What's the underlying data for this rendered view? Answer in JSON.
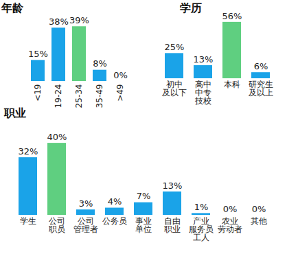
{
  "chart_data": [
    {
      "type": "bar",
      "title": "年龄",
      "categories": [
        "<19",
        "19-24",
        "25-34",
        "35-49",
        ">49"
      ],
      "values": [
        15,
        38,
        39,
        8,
        0
      ],
      "value_labels": [
        "15%",
        "38%",
        "39%",
        "8%",
        "0%"
      ],
      "colors": [
        "#1aa3e8",
        "#1aa3e8",
        "#5fcf80",
        "#1aa3e8",
        "#1aa3e8"
      ],
      "ylim": [
        0,
        45
      ],
      "data_labels": true,
      "tick_labels": "x"
    },
    {
      "type": "bar",
      "title": "学历",
      "categories": [
        "初中\n及以下",
        "高中\n中专\n技校",
        "本科",
        "研究生\n及以上"
      ],
      "values": [
        25,
        13,
        56,
        6
      ],
      "value_labels": [
        "25%",
        "13%",
        "56%",
        "6%"
      ],
      "colors": [
        "#1aa3e8",
        "#1aa3e8",
        "#5fcf80",
        "#1aa3e8"
      ],
      "ylim": [
        0,
        60
      ],
      "data_labels": true,
      "tick_labels": "x"
    },
    {
      "type": "bar",
      "title": "职业",
      "categories": [
        "学生",
        "公司\n职员",
        "公司\n管理者",
        "公务员",
        "事业\n单位",
        "自由\n职业",
        "产业\n服务员\n工人",
        "农业\n劳动者",
        "其他"
      ],
      "values": [
        32,
        40,
        3,
        4,
        7,
        13,
        1,
        0,
        0
      ],
      "value_labels": [
        "32%",
        "40%",
        "3%",
        "4%",
        "7%",
        "13%",
        "1%",
        "0%",
        "0%"
      ],
      "colors": [
        "#1aa3e8",
        "#5fcf80",
        "#1aa3e8",
        "#1aa3e8",
        "#1aa3e8",
        "#1aa3e8",
        "#1aa3e8",
        "#1aa3e8",
        "#1aa3e8"
      ],
      "ylim": [
        0,
        45
      ],
      "data_labels": true,
      "tick_labels": "x"
    }
  ]
}
